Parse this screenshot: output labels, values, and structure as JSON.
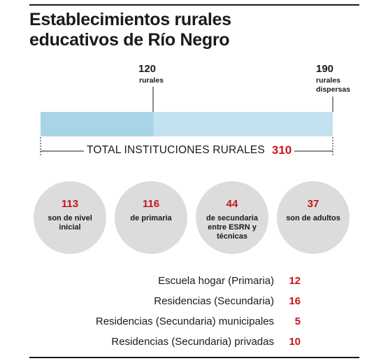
{
  "title_line1": "Establecimientos rurales",
  "title_line2": "educativos de Río Negro",
  "chart_data": {
    "type": "bar",
    "orientation": "horizontal-stacked",
    "total": 310,
    "segments": [
      {
        "value": 120,
        "label": "rurales",
        "color": "#a8d4e6"
      },
      {
        "value": 190,
        "label": "rurales dispersas",
        "color": "#c3e2ef"
      }
    ],
    "total_label": "TOTAL INSTITUCIONES RURALES",
    "total_value": "310",
    "top_labels": [
      {
        "value": "120",
        "sub": [
          "rurales"
        ]
      },
      {
        "value": "190",
        "sub": [
          "rurales",
          "dispersas"
        ]
      }
    ],
    "circles": [
      {
        "value": "113",
        "label": "son de nivel inicial"
      },
      {
        "value": "116",
        "label": "de primaria"
      },
      {
        "value": "44",
        "label": "de secundaria entre ESRN y técnicas"
      },
      {
        "value": "37",
        "label": "son de adultos"
      }
    ],
    "rows": [
      {
        "label": "Escuela hogar (Primaria)",
        "value": "12"
      },
      {
        "label": "Residencias (Secundaria)",
        "value": "16"
      },
      {
        "label": "Residencias (Secundaria) municipales",
        "value": "5"
      },
      {
        "label": "Residencias (Secundaria) privadas",
        "value": "10"
      }
    ]
  },
  "colors": {
    "accent": "#c8141e",
    "bar_rurales": "#a8d4e6",
    "bar_dispersas": "#c3e2ef",
    "circle": "#dcdcdc"
  }
}
